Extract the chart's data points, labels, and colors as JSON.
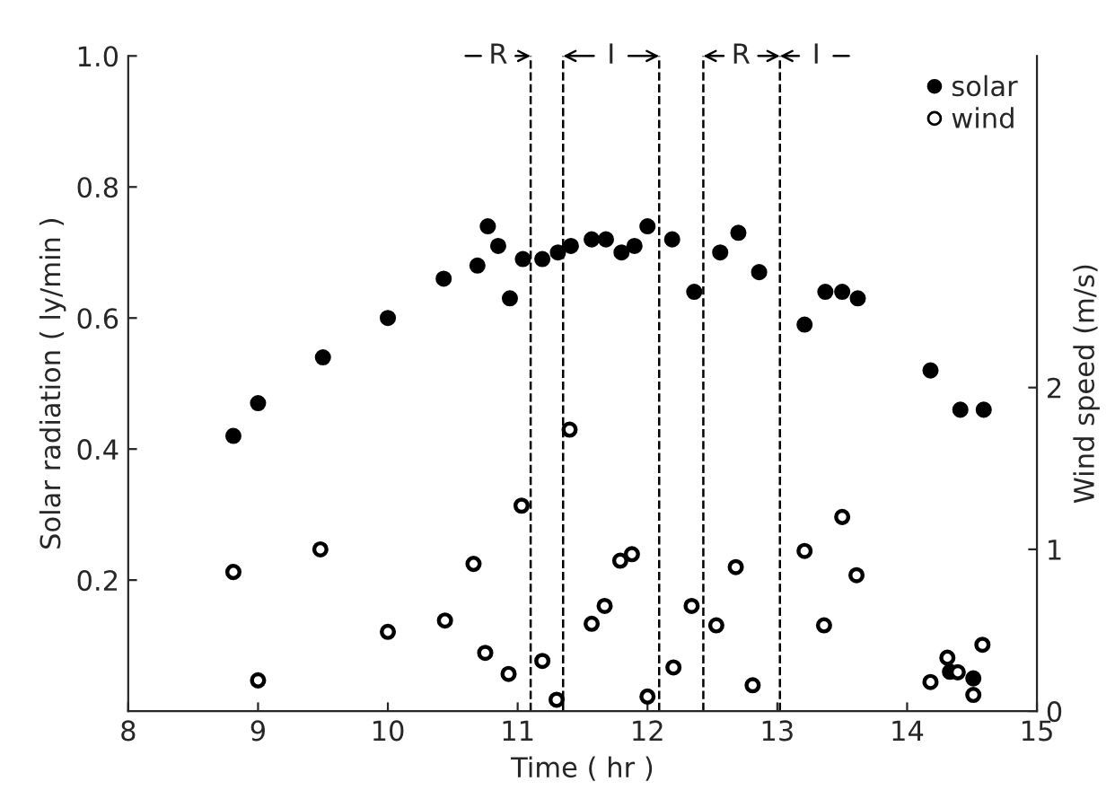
{
  "chart_data": {
    "type": "scatter",
    "xlabel": "Time ( hr )",
    "ylabel": "Solar radiation ( ly/min )",
    "y2label": "Wind speed (m/s)",
    "series": [
      {
        "name": "solar",
        "color": "#000000",
        "marker": "circle",
        "x": [
          8.81,
          9.0,
          9.5,
          10.0,
          10.43,
          10.69,
          10.77,
          10.85,
          10.94,
          11.04,
          11.19,
          11.31,
          11.41,
          11.57,
          11.68,
          11.8,
          11.9,
          12.0,
          12.19,
          12.36,
          12.56,
          12.7,
          12.86,
          13.21,
          13.37,
          13.5,
          13.62,
          14.18,
          14.41,
          14.59,
          14.33,
          14.51
        ],
        "values": [
          0.42,
          0.47,
          0.54,
          0.6,
          0.66,
          0.68,
          0.74,
          0.71,
          0.63,
          0.69,
          0.69,
          0.7,
          0.71,
          0.72,
          0.72,
          0.7,
          0.71,
          0.74,
          0.72,
          0.64,
          0.7,
          0.73,
          0.67,
          0.59,
          0.64,
          0.64,
          0.63,
          0.52,
          0.46,
          0.46,
          0.06,
          0.05
        ]
      },
      {
        "name": "wind",
        "color": "#ffffff",
        "marker": "circle",
        "axis": "y2",
        "x": [
          8.81,
          9.0,
          9.48,
          10.0,
          10.44,
          10.66,
          10.75,
          10.93,
          11.03,
          11.19,
          11.3,
          11.4,
          11.57,
          11.67,
          11.79,
          11.88,
          12.0,
          12.2,
          12.34,
          12.53,
          12.68,
          12.81,
          13.21,
          13.36,
          13.5,
          13.61,
          14.18,
          14.31,
          14.39,
          14.51,
          14.58
        ],
        "values": [
          0.86,
          0.19,
          1.0,
          0.49,
          0.56,
          0.91,
          0.36,
          0.23,
          1.27,
          0.31,
          0.07,
          1.74,
          0.54,
          0.65,
          0.93,
          0.97,
          0.09,
          0.27,
          0.65,
          0.53,
          0.89,
          0.16,
          0.99,
          0.53,
          1.2,
          0.84,
          0.18,
          0.33,
          0.24,
          0.1,
          0.41
        ]
      }
    ],
    "xlim": [
      8,
      15
    ],
    "xticks": [
      8,
      9,
      10,
      11,
      12,
      13,
      14,
      15
    ],
    "ylim": [
      0,
      1.0
    ],
    "yticks": [
      0.2,
      0.4,
      0.6,
      0.8,
      {
        "value": 1,
        "label": "1.0"
      }
    ],
    "y2lim": [
      0,
      4.05
    ],
    "y2ticks": [
      0,
      1,
      2
    ],
    "ref_lines": [
      {
        "axis": "x",
        "value": 11.1,
        "line_style": "dashed"
      },
      {
        "axis": "x",
        "value": 11.35,
        "line_style": "dashed"
      },
      {
        "axis": "x",
        "value": 12.09,
        "line_style": "dashed"
      },
      {
        "axis": "x",
        "value": 12.43,
        "line_style": "dashed"
      },
      {
        "axis": "x",
        "value": 13.02,
        "line_style": "dashed"
      }
    ],
    "annotations": [
      {
        "text": "R",
        "x": 10.85,
        "y": 1.0
      },
      {
        "text": "I",
        "x": 11.72,
        "y": 1.0
      },
      {
        "text": "R",
        "x": 12.72,
        "y": 1.0
      },
      {
        "text": "I",
        "x": 13.3,
        "y": 1.0
      }
    ],
    "legend": "top right",
    "grid": false
  }
}
